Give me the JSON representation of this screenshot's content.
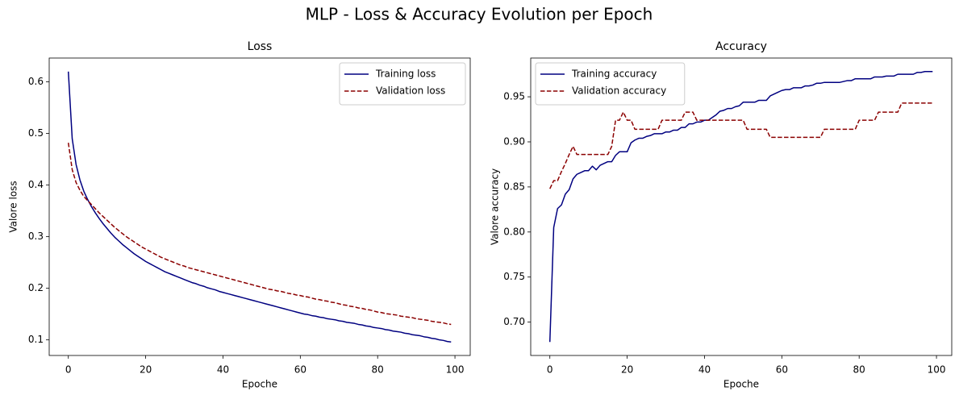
{
  "title": "MLP - Loss & Accuracy Evolution per Epoch",
  "chart_data": [
    {
      "type": "line",
      "title": "Loss",
      "x_label": "Epoche",
      "y_label": "Valore loss",
      "legend": "upper right",
      "x": [
        0,
        1,
        2,
        3,
        4,
        5,
        6,
        7,
        8,
        9,
        10,
        11,
        12,
        13,
        14,
        15,
        16,
        17,
        18,
        19,
        20,
        21,
        22,
        23,
        24,
        25,
        26,
        27,
        28,
        29,
        30,
        31,
        32,
        33,
        34,
        35,
        36,
        37,
        38,
        39,
        40,
        41,
        42,
        43,
        44,
        45,
        46,
        47,
        48,
        49,
        50,
        51,
        52,
        53,
        54,
        55,
        56,
        57,
        58,
        59,
        60,
        61,
        62,
        63,
        64,
        65,
        66,
        67,
        68,
        69,
        70,
        71,
        72,
        73,
        74,
        75,
        76,
        77,
        78,
        79,
        80,
        81,
        82,
        83,
        84,
        85,
        86,
        87,
        88,
        89,
        90,
        91,
        92,
        93,
        94,
        95,
        96,
        97,
        98,
        99
      ],
      "xlim": [
        -4.95,
        103.95
      ],
      "xticks": [
        0,
        20,
        40,
        60,
        80,
        100
      ],
      "ylim": [
        0.0698,
        0.6462
      ],
      "yticks": [
        0.1,
        0.2,
        0.3,
        0.4,
        0.5,
        0.6
      ],
      "series": [
        {
          "name": "Training loss",
          "color": "#000080",
          "dashed": false,
          "values": [
            0.62,
            0.49,
            0.44,
            0.41,
            0.388,
            0.372,
            0.358,
            0.346,
            0.335,
            0.325,
            0.316,
            0.307,
            0.299,
            0.292,
            0.285,
            0.279,
            0.273,
            0.267,
            0.262,
            0.257,
            0.252,
            0.248,
            0.244,
            0.24,
            0.236,
            0.232,
            0.229,
            0.226,
            0.223,
            0.22,
            0.217,
            0.214,
            0.211,
            0.209,
            0.206,
            0.204,
            0.201,
            0.199,
            0.197,
            0.194,
            0.192,
            0.19,
            0.188,
            0.186,
            0.184,
            0.182,
            0.18,
            0.178,
            0.176,
            0.174,
            0.172,
            0.17,
            0.168,
            0.166,
            0.164,
            0.162,
            0.16,
            0.158,
            0.156,
            0.154,
            0.152,
            0.15,
            0.149,
            0.147,
            0.146,
            0.144,
            0.143,
            0.141,
            0.14,
            0.139,
            0.137,
            0.136,
            0.134,
            0.133,
            0.132,
            0.13,
            0.129,
            0.127,
            0.126,
            0.124,
            0.123,
            0.122,
            0.12,
            0.119,
            0.117,
            0.116,
            0.115,
            0.113,
            0.112,
            0.11,
            0.109,
            0.108,
            0.106,
            0.105,
            0.103,
            0.102,
            0.1,
            0.099,
            0.097,
            0.096
          ]
        },
        {
          "name": "Validation loss",
          "color": "#8b0000",
          "dashed": true,
          "values": [
            0.482,
            0.43,
            0.405,
            0.39,
            0.378,
            0.37,
            0.362,
            0.354,
            0.346,
            0.339,
            0.332,
            0.325,
            0.318,
            0.312,
            0.306,
            0.3,
            0.295,
            0.29,
            0.285,
            0.28,
            0.276,
            0.272,
            0.268,
            0.264,
            0.26,
            0.257,
            0.254,
            0.251,
            0.248,
            0.245,
            0.243,
            0.24,
            0.238,
            0.236,
            0.234,
            0.232,
            0.23,
            0.228,
            0.226,
            0.224,
            0.222,
            0.22,
            0.218,
            0.216,
            0.214,
            0.212,
            0.21,
            0.208,
            0.206,
            0.204,
            0.202,
            0.2,
            0.198,
            0.197,
            0.195,
            0.194,
            0.192,
            0.19,
            0.189,
            0.187,
            0.186,
            0.184,
            0.183,
            0.181,
            0.179,
            0.178,
            0.176,
            0.175,
            0.173,
            0.172,
            0.17,
            0.168,
            0.167,
            0.165,
            0.164,
            0.162,
            0.161,
            0.159,
            0.158,
            0.156,
            0.154,
            0.153,
            0.151,
            0.15,
            0.149,
            0.148,
            0.146,
            0.145,
            0.144,
            0.143,
            0.141,
            0.14,
            0.139,
            0.138,
            0.136,
            0.135,
            0.134,
            0.133,
            0.131,
            0.13
          ]
        }
      ]
    },
    {
      "type": "line",
      "title": "Accuracy",
      "x_label": "Epoche",
      "y_label": "Valore accuracy",
      "legend": "upper left",
      "x": [
        0,
        1,
        2,
        3,
        4,
        5,
        6,
        7,
        8,
        9,
        10,
        11,
        12,
        13,
        14,
        15,
        16,
        17,
        18,
        19,
        20,
        21,
        22,
        23,
        24,
        25,
        26,
        27,
        28,
        29,
        30,
        31,
        32,
        33,
        34,
        35,
        36,
        37,
        38,
        39,
        40,
        41,
        42,
        43,
        44,
        45,
        46,
        47,
        48,
        49,
        50,
        51,
        52,
        53,
        54,
        55,
        56,
        57,
        58,
        59,
        60,
        61,
        62,
        63,
        64,
        65,
        66,
        67,
        68,
        69,
        70,
        71,
        72,
        73,
        74,
        75,
        76,
        77,
        78,
        79,
        80,
        81,
        82,
        83,
        84,
        85,
        86,
        87,
        88,
        89,
        90,
        91,
        92,
        93,
        94,
        95,
        96,
        97,
        98,
        99
      ],
      "xlim": [
        -4.95,
        103.95
      ],
      "xticks": [
        0,
        20,
        40,
        60,
        80,
        100
      ],
      "ylim": [
        0.663,
        0.993
      ],
      "yticks": [
        {
          "value": 0.7,
          "label": "0.70"
        },
        0.75,
        {
          "value": 0.8,
          "label": "0.80"
        },
        0.85,
        {
          "value": 0.9,
          "label": "0.90"
        },
        0.95
      ],
      "series": [
        {
          "name": "Training accuracy",
          "color": "#000080",
          "dashed": false,
          "values": [
            0.678,
            0.805,
            0.826,
            0.83,
            0.842,
            0.847,
            0.859,
            0.864,
            0.866,
            0.868,
            0.868,
            0.873,
            0.869,
            0.874,
            0.876,
            0.878,
            0.878,
            0.885,
            0.889,
            0.889,
            0.889,
            0.899,
            0.902,
            0.904,
            0.904,
            0.906,
            0.907,
            0.909,
            0.909,
            0.909,
            0.911,
            0.911,
            0.913,
            0.913,
            0.916,
            0.916,
            0.92,
            0.92,
            0.922,
            0.922,
            0.924,
            0.924,
            0.927,
            0.93,
            0.934,
            0.935,
            0.937,
            0.937,
            0.939,
            0.94,
            0.944,
            0.944,
            0.944,
            0.944,
            0.946,
            0.946,
            0.946,
            0.951,
            0.953,
            0.955,
            0.957,
            0.958,
            0.958,
            0.96,
            0.96,
            0.96,
            0.962,
            0.962,
            0.963,
            0.965,
            0.965,
            0.966,
            0.966,
            0.966,
            0.966,
            0.966,
            0.967,
            0.968,
            0.968,
            0.97,
            0.97,
            0.97,
            0.97,
            0.97,
            0.972,
            0.972,
            0.972,
            0.973,
            0.973,
            0.973,
            0.975,
            0.975,
            0.975,
            0.975,
            0.975,
            0.977,
            0.977,
            0.978,
            0.978,
            0.978
          ]
        },
        {
          "name": "Validation accuracy",
          "color": "#8b0000",
          "dashed": true,
          "values": [
            0.848,
            0.857,
            0.857,
            0.867,
            0.876,
            0.886,
            0.895,
            0.886,
            0.886,
            0.886,
            0.886,
            0.886,
            0.886,
            0.886,
            0.886,
            0.886,
            0.895,
            0.924,
            0.924,
            0.933,
            0.924,
            0.924,
            0.914,
            0.914,
            0.914,
            0.914,
            0.914,
            0.914,
            0.914,
            0.924,
            0.924,
            0.924,
            0.924,
            0.924,
            0.924,
            0.933,
            0.933,
            0.933,
            0.924,
            0.924,
            0.924,
            0.924,
            0.924,
            0.924,
            0.924,
            0.924,
            0.924,
            0.924,
            0.924,
            0.924,
            0.924,
            0.914,
            0.914,
            0.914,
            0.914,
            0.914,
            0.914,
            0.905,
            0.905,
            0.905,
            0.905,
            0.905,
            0.905,
            0.905,
            0.905,
            0.905,
            0.905,
            0.905,
            0.905,
            0.905,
            0.905,
            0.914,
            0.914,
            0.914,
            0.914,
            0.914,
            0.914,
            0.914,
            0.914,
            0.914,
            0.924,
            0.924,
            0.924,
            0.924,
            0.924,
            0.933,
            0.933,
            0.933,
            0.933,
            0.933,
            0.933,
            0.943,
            0.943,
            0.943,
            0.943,
            0.943,
            0.943,
            0.943,
            0.943,
            0.943
          ]
        }
      ]
    }
  ]
}
